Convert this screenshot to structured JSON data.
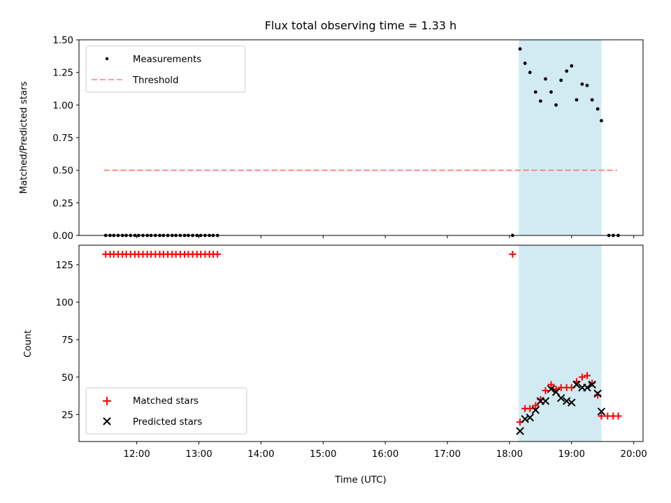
{
  "title": "Flux total observing time = 1.33 h",
  "colors": {
    "measurement": "#000000",
    "threshold": "#ff7f7f",
    "matched": "#ff0000",
    "predicted": "#000000",
    "shade": "#add8e6"
  },
  "chart_data": [
    {
      "type": "scatter",
      "panel": "top",
      "ylabel": "Matched/Predicted stars",
      "xlim": [
        11.07,
        20.15
      ],
      "ylim": [
        0,
        1.5
      ],
      "yticks": [
        0.0,
        0.25,
        0.5,
        0.75,
        1.0,
        1.25,
        1.5
      ],
      "ytick_labels": [
        "0.00",
        "0.25",
        "0.50",
        "0.75",
        "1.00",
        "1.25",
        "1.50"
      ],
      "grid": false,
      "legend_position": "top-left",
      "shaded_x_range": [
        18.15,
        19.48
      ],
      "threshold": {
        "name": "Threshold",
        "y": 0.5,
        "x_range": [
          11.47,
          19.73
        ],
        "style": "dashed"
      },
      "series": [
        {
          "name": "Measurements",
          "marker": "dot",
          "points": [
            [
              11.5,
              0
            ],
            [
              11.57,
              0
            ],
            [
              11.63,
              0
            ],
            [
              11.7,
              0
            ],
            [
              11.77,
              0
            ],
            [
              11.83,
              0
            ],
            [
              11.9,
              0
            ],
            [
              11.97,
              0
            ],
            [
              12.03,
              0
            ],
            [
              12.1,
              0
            ],
            [
              12.17,
              0
            ],
            [
              12.23,
              0
            ],
            [
              12.3,
              0
            ],
            [
              12.37,
              0
            ],
            [
              12.43,
              0
            ],
            [
              12.5,
              0
            ],
            [
              12.57,
              0
            ],
            [
              12.63,
              0
            ],
            [
              12.7,
              0
            ],
            [
              12.77,
              0
            ],
            [
              12.83,
              0
            ],
            [
              12.9,
              0
            ],
            [
              12.97,
              0
            ],
            [
              13.03,
              0
            ],
            [
              13.1,
              0
            ],
            [
              13.17,
              0
            ],
            [
              13.23,
              0
            ],
            [
              13.3,
              0
            ],
            [
              18.05,
              0
            ],
            [
              18.17,
              1.43
            ],
            [
              18.25,
              1.32
            ],
            [
              18.33,
              1.25
            ],
            [
              18.42,
              1.1
            ],
            [
              18.5,
              1.03
            ],
            [
              18.58,
              1.2
            ],
            [
              18.67,
              1.1
            ],
            [
              18.75,
              1.0
            ],
            [
              18.83,
              1.19
            ],
            [
              18.92,
              1.26
            ],
            [
              19.0,
              1.3
            ],
            [
              19.08,
              1.04
            ],
            [
              19.17,
              1.16
            ],
            [
              19.25,
              1.15
            ],
            [
              19.33,
              1.04
            ],
            [
              19.42,
              0.97
            ],
            [
              19.48,
              0.88
            ],
            [
              19.6,
              0
            ],
            [
              19.67,
              0
            ],
            [
              19.75,
              0
            ]
          ]
        }
      ]
    },
    {
      "type": "scatter",
      "panel": "bottom",
      "xlabel": "Time (UTC)",
      "ylabel": "Count",
      "xlim": [
        11.07,
        20.15
      ],
      "ylim": [
        7,
        138
      ],
      "yticks": [
        25,
        50,
        75,
        100,
        125
      ],
      "ytick_labels": [
        "25",
        "50",
        "75",
        "100",
        "125"
      ],
      "xticks": [
        12,
        13,
        14,
        15,
        16,
        17,
        18,
        19,
        20
      ],
      "xtick_labels": [
        "12:00",
        "13:00",
        "14:00",
        "15:00",
        "16:00",
        "17:00",
        "18:00",
        "19:00",
        "20:00"
      ],
      "grid": false,
      "legend_position": "bottom-left",
      "shaded_x_range": [
        18.15,
        19.48
      ],
      "series": [
        {
          "name": "Matched stars",
          "marker": "plus",
          "points": [
            [
              11.5,
              132
            ],
            [
              11.57,
              132
            ],
            [
              11.63,
              132
            ],
            [
              11.7,
              132
            ],
            [
              11.77,
              132
            ],
            [
              11.83,
              132
            ],
            [
              11.9,
              132
            ],
            [
              11.97,
              132
            ],
            [
              12.03,
              132
            ],
            [
              12.1,
              132
            ],
            [
              12.17,
              132
            ],
            [
              12.23,
              132
            ],
            [
              12.3,
              132
            ],
            [
              12.37,
              132
            ],
            [
              12.43,
              132
            ],
            [
              12.5,
              132
            ],
            [
              12.57,
              132
            ],
            [
              12.63,
              132
            ],
            [
              12.7,
              132
            ],
            [
              12.77,
              132
            ],
            [
              12.83,
              132
            ],
            [
              12.9,
              132
            ],
            [
              12.97,
              132
            ],
            [
              13.03,
              132
            ],
            [
              13.1,
              132
            ],
            [
              13.17,
              132
            ],
            [
              13.23,
              132
            ],
            [
              13.3,
              132
            ],
            [
              18.05,
              132
            ],
            [
              18.17,
              20
            ],
            [
              18.25,
              29
            ],
            [
              18.33,
              29
            ],
            [
              18.42,
              31
            ],
            [
              18.5,
              35
            ],
            [
              18.58,
              41
            ],
            [
              18.67,
              45
            ],
            [
              18.75,
              42
            ],
            [
              18.83,
              43
            ],
            [
              18.92,
              43
            ],
            [
              19.0,
              43
            ],
            [
              19.08,
              47
            ],
            [
              19.17,
              50
            ],
            [
              19.25,
              51
            ],
            [
              19.33,
              46
            ],
            [
              19.42,
              38
            ],
            [
              19.48,
              24
            ],
            [
              19.58,
              24
            ],
            [
              19.67,
              24
            ],
            [
              19.75,
              24
            ]
          ]
        },
        {
          "name": "Predicted stars",
          "marker": "x",
          "points": [
            [
              18.17,
              14
            ],
            [
              18.25,
              22
            ],
            [
              18.33,
              23
            ],
            [
              18.42,
              28
            ],
            [
              18.5,
              34
            ],
            [
              18.58,
              34
            ],
            [
              18.67,
              42
            ],
            [
              18.75,
              40
            ],
            [
              18.83,
              36
            ],
            [
              18.92,
              34
            ],
            [
              19.0,
              33
            ],
            [
              19.08,
              45
            ],
            [
              19.17,
              43
            ],
            [
              19.25,
              43
            ],
            [
              19.33,
              45
            ],
            [
              19.42,
              39
            ],
            [
              19.48,
              27
            ]
          ]
        }
      ]
    }
  ]
}
